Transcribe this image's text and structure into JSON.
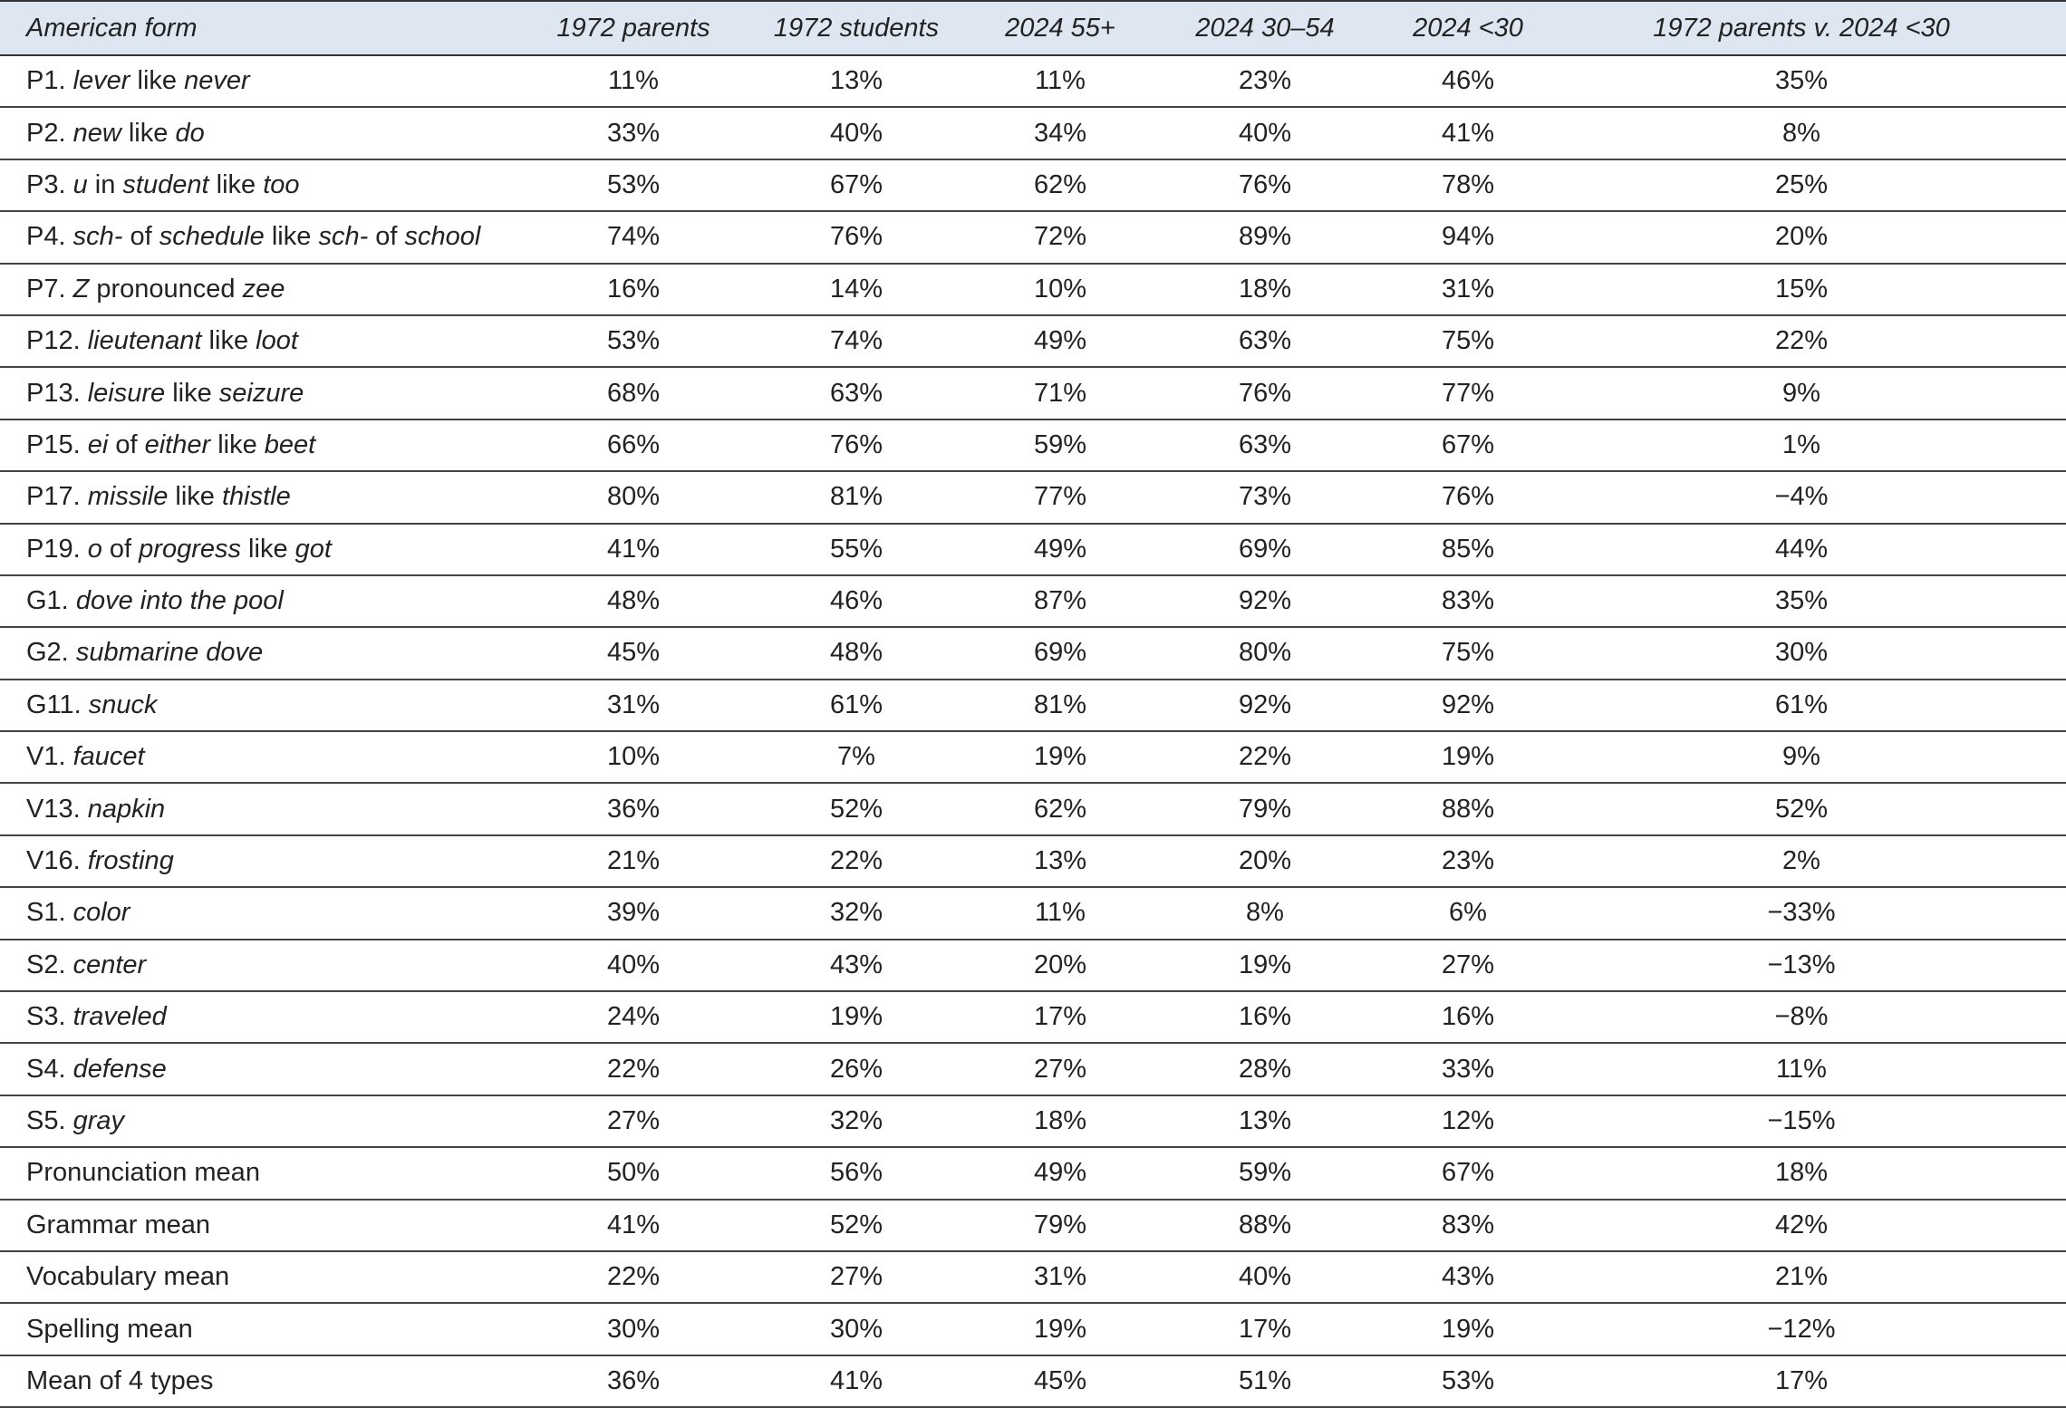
{
  "table": {
    "columns": [
      "American form",
      "1972 parents",
      "1972 students",
      "2024 55+",
      "2024 30–54",
      "2024 <30",
      "1972 parents v. 2024 <30"
    ],
    "rows": [
      {
        "label": [
          {
            "text": "P1. "
          },
          {
            "text": "lever",
            "italic": true
          },
          {
            "text": " like "
          },
          {
            "text": "never",
            "italic": true
          }
        ],
        "cells": [
          "11%",
          "13%",
          "11%",
          "23%",
          "46%",
          "35%"
        ]
      },
      {
        "label": [
          {
            "text": "P2. "
          },
          {
            "text": "new",
            "italic": true
          },
          {
            "text": " like "
          },
          {
            "text": "do",
            "italic": true
          }
        ],
        "cells": [
          "33%",
          "40%",
          "34%",
          "40%",
          "41%",
          "8%"
        ]
      },
      {
        "label": [
          {
            "text": "P3. "
          },
          {
            "text": "u",
            "italic": true
          },
          {
            "text": " in "
          },
          {
            "text": "student",
            "italic": true
          },
          {
            "text": " like "
          },
          {
            "text": "too",
            "italic": true
          }
        ],
        "cells": [
          "53%",
          "67%",
          "62%",
          "76%",
          "78%",
          "25%"
        ]
      },
      {
        "label": [
          {
            "text": "P4. "
          },
          {
            "text": "sch-",
            "italic": true
          },
          {
            "text": " of "
          },
          {
            "text": "schedule",
            "italic": true
          },
          {
            "text": " like "
          },
          {
            "text": "sch-",
            "italic": true
          },
          {
            "text": " of "
          },
          {
            "text": "school",
            "italic": true
          }
        ],
        "cells": [
          "74%",
          "76%",
          "72%",
          "89%",
          "94%",
          "20%"
        ]
      },
      {
        "label": [
          {
            "text": "P7. "
          },
          {
            "text": "Z",
            "italic": true
          },
          {
            "text": " pronounced "
          },
          {
            "text": "zee",
            "italic": true
          }
        ],
        "cells": [
          "16%",
          "14%",
          "10%",
          "18%",
          "31%",
          "15%"
        ]
      },
      {
        "label": [
          {
            "text": "P12. "
          },
          {
            "text": "lieutenant",
            "italic": true
          },
          {
            "text": " like "
          },
          {
            "text": "loot",
            "italic": true
          }
        ],
        "cells": [
          "53%",
          "74%",
          "49%",
          "63%",
          "75%",
          "22%"
        ]
      },
      {
        "label": [
          {
            "text": "P13. "
          },
          {
            "text": "leisure",
            "italic": true
          },
          {
            "text": " like "
          },
          {
            "text": "seizure",
            "italic": true
          }
        ],
        "cells": [
          "68%",
          "63%",
          "71%",
          "76%",
          "77%",
          "9%"
        ]
      },
      {
        "label": [
          {
            "text": "P15. "
          },
          {
            "text": "ei",
            "italic": true
          },
          {
            "text": " of "
          },
          {
            "text": "either",
            "italic": true
          },
          {
            "text": " like "
          },
          {
            "text": "beet",
            "italic": true
          }
        ],
        "cells": [
          "66%",
          "76%",
          "59%",
          "63%",
          "67%",
          "1%"
        ]
      },
      {
        "label": [
          {
            "text": "P17. "
          },
          {
            "text": "missile",
            "italic": true
          },
          {
            "text": " like "
          },
          {
            "text": "thistle",
            "italic": true
          }
        ],
        "cells": [
          "80%",
          "81%",
          "77%",
          "73%",
          "76%",
          "−4%"
        ]
      },
      {
        "label": [
          {
            "text": "P19. "
          },
          {
            "text": "o",
            "italic": true
          },
          {
            "text": " of "
          },
          {
            "text": "progress",
            "italic": true
          },
          {
            "text": " like "
          },
          {
            "text": "got",
            "italic": true
          }
        ],
        "cells": [
          "41%",
          "55%",
          "49%",
          "69%",
          "85%",
          "44%"
        ]
      },
      {
        "label": [
          {
            "text": "G1. "
          },
          {
            "text": "dove into the pool",
            "italic": true
          }
        ],
        "cells": [
          "48%",
          "46%",
          "87%",
          "92%",
          "83%",
          "35%"
        ]
      },
      {
        "label": [
          {
            "text": "G2. "
          },
          {
            "text": "submarine dove",
            "italic": true
          }
        ],
        "cells": [
          "45%",
          "48%",
          "69%",
          "80%",
          "75%",
          "30%"
        ]
      },
      {
        "label": [
          {
            "text": "G11. "
          },
          {
            "text": "snuck",
            "italic": true
          }
        ],
        "cells": [
          "31%",
          "61%",
          "81%",
          "92%",
          "92%",
          "61%"
        ]
      },
      {
        "label": [
          {
            "text": "V1. "
          },
          {
            "text": "faucet",
            "italic": true
          }
        ],
        "cells": [
          "10%",
          "7%",
          "19%",
          "22%",
          "19%",
          "9%"
        ]
      },
      {
        "label": [
          {
            "text": "V13. "
          },
          {
            "text": "napkin",
            "italic": true
          }
        ],
        "cells": [
          "36%",
          "52%",
          "62%",
          "79%",
          "88%",
          "52%"
        ]
      },
      {
        "label": [
          {
            "text": "V16. "
          },
          {
            "text": "frosting",
            "italic": true
          }
        ],
        "cells": [
          "21%",
          "22%",
          "13%",
          "20%",
          "23%",
          "2%"
        ]
      },
      {
        "label": [
          {
            "text": "S1. "
          },
          {
            "text": "color",
            "italic": true
          }
        ],
        "cells": [
          "39%",
          "32%",
          "11%",
          "8%",
          "6%",
          "−33%"
        ]
      },
      {
        "label": [
          {
            "text": "S2. "
          },
          {
            "text": "center",
            "italic": true
          }
        ],
        "cells": [
          "40%",
          "43%",
          "20%",
          "19%",
          "27%",
          "−13%"
        ]
      },
      {
        "label": [
          {
            "text": "S3. "
          },
          {
            "text": "traveled",
            "italic": true
          }
        ],
        "cells": [
          "24%",
          "19%",
          "17%",
          "16%",
          "16%",
          "−8%"
        ]
      },
      {
        "label": [
          {
            "text": "S4. "
          },
          {
            "text": "defense",
            "italic": true
          }
        ],
        "cells": [
          "22%",
          "26%",
          "27%",
          "28%",
          "33%",
          "11%"
        ]
      },
      {
        "label": [
          {
            "text": "S5. "
          },
          {
            "text": "gray",
            "italic": true
          }
        ],
        "cells": [
          "27%",
          "32%",
          "18%",
          "13%",
          "12%",
          "−15%"
        ]
      },
      {
        "label": [
          {
            "text": "Pronunciation mean"
          }
        ],
        "cells": [
          "50%",
          "56%",
          "49%",
          "59%",
          "67%",
          "18%"
        ]
      },
      {
        "label": [
          {
            "text": "Grammar mean"
          }
        ],
        "cells": [
          "41%",
          "52%",
          "79%",
          "88%",
          "83%",
          "42%"
        ]
      },
      {
        "label": [
          {
            "text": "Vocabulary mean"
          }
        ],
        "cells": [
          "22%",
          "27%",
          "31%",
          "40%",
          "43%",
          "21%"
        ]
      },
      {
        "label": [
          {
            "text": "Spelling mean"
          }
        ],
        "cells": [
          "30%",
          "30%",
          "19%",
          "17%",
          "19%",
          "−12%"
        ]
      },
      {
        "label": [
          {
            "text": "Mean of 4 types"
          }
        ],
        "cells": [
          "36%",
          "41%",
          "45%",
          "51%",
          "53%",
          "17%"
        ]
      }
    ]
  }
}
